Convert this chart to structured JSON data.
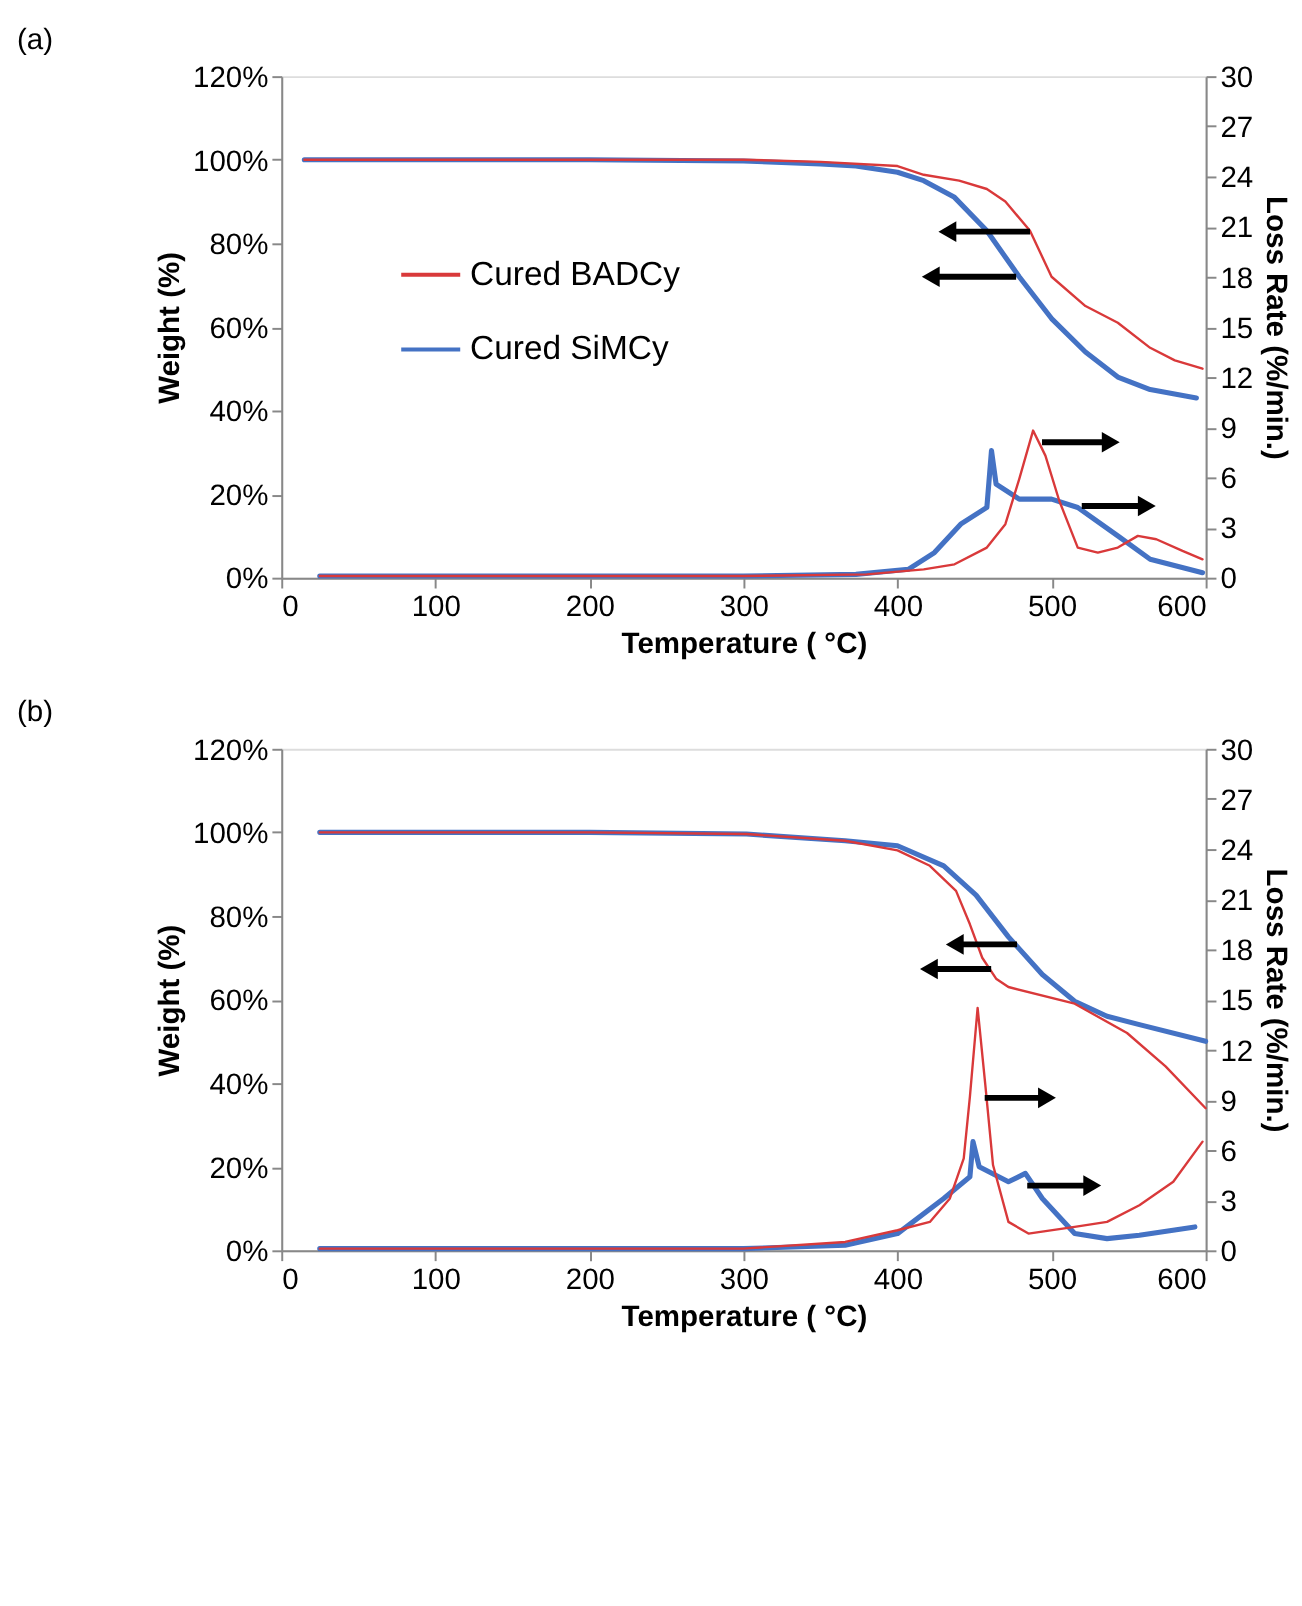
{
  "chart_data": [
    {
      "type": "line",
      "title": "(a)",
      "xlabel": "Temperature ( °C)",
      "ylabel": "Weight (%)",
      "y2label": "Loss Rate (%/min.)",
      "xlim": [
        0,
        600
      ],
      "xticks": [
        0,
        100,
        200,
        300,
        400,
        500,
        600
      ],
      "ylim": [
        0,
        120
      ],
      "yticks": [
        {
          "value": 0,
          "label": "0%"
        },
        {
          "value": 20,
          "label": "20%"
        },
        {
          "value": 40,
          "label": "40%"
        },
        {
          "value": 60,
          "label": "60%"
        },
        {
          "value": 80,
          "label": "80%"
        },
        {
          "value": 100,
          "label": "100%"
        },
        {
          "value": 120,
          "label": "120%"
        }
      ],
      "y2lim": [
        0,
        30
      ],
      "y2ticks": [
        0,
        3,
        6,
        9,
        12,
        15,
        18,
        21,
        24,
        27,
        30
      ],
      "grid": false,
      "legend": "left",
      "marker": "none",
      "line_style": "solid",
      "series": [
        {
          "name": "Cured BADCy",
          "color": "#d9393a",
          "x": [
            15,
            100,
            200,
            300,
            350,
            400,
            417,
            440,
            458,
            470,
            486,
            500,
            522,
            543,
            564,
            580,
            598
          ],
          "values": [
            100,
            100,
            100,
            100,
            99.5,
            98.5,
            96.4,
            95,
            93,
            90,
            83,
            72,
            65,
            61,
            55,
            52,
            50
          ]
        },
        {
          "name": "Cured SiMCy",
          "color": "#4472c4",
          "x": [
            15,
            100,
            200,
            300,
            350,
            373,
            400,
            417,
            437,
            458,
            479,
            500,
            522,
            543,
            564,
            594
          ],
          "values": [
            100,
            100,
            100,
            99.7,
            99,
            98.5,
            97,
            95,
            91,
            83,
            72,
            62,
            54,
            48,
            45,
            43
          ]
        },
        {
          "color": "#d9393a",
          "axis": "y2",
          "x": [
            25,
            100,
            200,
            300,
            380,
            417,
            437,
            458,
            470,
            479,
            488,
            496,
            505,
            517,
            530,
            543,
            556,
            568,
            585,
            598
          ],
          "values": [
            0.1,
            0.1,
            0.1,
            0.1,
            0.2,
            0.5,
            0.8,
            1.8,
            3.2,
            5.9,
            8.8,
            7.3,
            4.6,
            1.8,
            1.5,
            1.8,
            2.5,
            2.3,
            1.6,
            1.1
          ]
        },
        {
          "color": "#4472c4",
          "axis": "y2",
          "x": [
            25,
            100,
            200,
            300,
            373,
            407,
            424,
            441,
            458,
            461,
            464,
            479,
            500,
            517,
            543,
            564,
            598
          ],
          "values": [
            0.1,
            0.1,
            0.1,
            0.1,
            0.2,
            0.5,
            1.5,
            3.2,
            4.2,
            7.6,
            5.6,
            4.7,
            4.7,
            4.2,
            2.5,
            1.1,
            0.3
          ]
        }
      ]
    },
    {
      "type": "line",
      "title": "(b)",
      "xlabel": "Temperature ( °C)",
      "ylabel": "Weight (%)",
      "y2label": "Loss Rate (%/min.)",
      "xlim": [
        0,
        600
      ],
      "xticks": [
        0,
        100,
        200,
        300,
        400,
        500,
        600
      ],
      "ylim": [
        0,
        120
      ],
      "yticks": [
        {
          "value": 0,
          "label": "0%"
        },
        {
          "value": 20,
          "label": "20%"
        },
        {
          "value": 40,
          "label": "40%"
        },
        {
          "value": 60,
          "label": "60%"
        },
        {
          "value": 80,
          "label": "80%"
        },
        {
          "value": 100,
          "label": "100%"
        },
        {
          "value": 120,
          "label": "120%"
        }
      ],
      "y2lim": [
        0,
        30
      ],
      "y2ticks": [
        0,
        3,
        6,
        9,
        12,
        15,
        18,
        21,
        24,
        27,
        30
      ],
      "grid": false,
      "legend": "left",
      "marker": "none",
      "line_style": "solid",
      "series": [
        {
          "name": "Cured BADCy",
          "color": "#d9393a",
          "x": [
            25,
            100,
            200,
            302,
            366,
            400,
            421,
            438,
            447,
            455,
            464,
            472,
            515,
            549,
            574,
            600
          ],
          "values": [
            100,
            100,
            100,
            99.6,
            98,
            95.7,
            92,
            86,
            78,
            70,
            65,
            63,
            59,
            52,
            44,
            34
          ]
        },
        {
          "name": "Cured SiMCy",
          "color": "#4472c4",
          "x": [
            25,
            100,
            200,
            302,
            366,
            400,
            430,
            451,
            472,
            494,
            515,
            536,
            557,
            600
          ],
          "values": [
            100,
            100,
            100,
            99.6,
            98,
            96.8,
            92,
            85,
            75,
            66,
            59.6,
            56,
            54,
            50
          ]
        },
        {
          "color": "#d9393a",
          "axis": "y2",
          "x": [
            25,
            100,
            200,
            300,
            366,
            400,
            421,
            434,
            443,
            447,
            452,
            457,
            462,
            472,
            485,
            515,
            536,
            557,
            579,
            598
          ],
          "values": [
            0.1,
            0.1,
            0.1,
            0.1,
            0.5,
            1.2,
            1.7,
            3.1,
            5.5,
            9.2,
            14.5,
            9.9,
            5.1,
            1.7,
            1.0,
            1.4,
            1.7,
            2.7,
            4.1,
            6.5
          ]
        },
        {
          "color": "#4472c4",
          "axis": "y2",
          "x": [
            25,
            100,
            200,
            300,
            366,
            400,
            430,
            447,
            449,
            453,
            472,
            483,
            494,
            515,
            536,
            557,
            593
          ],
          "values": [
            0.1,
            0.1,
            0.1,
            0.1,
            0.3,
            1.0,
            3.1,
            4.4,
            6.5,
            5.0,
            4.1,
            4.6,
            3.1,
            1.0,
            0.7,
            0.9,
            1.4
          ]
        }
      ]
    }
  ]
}
